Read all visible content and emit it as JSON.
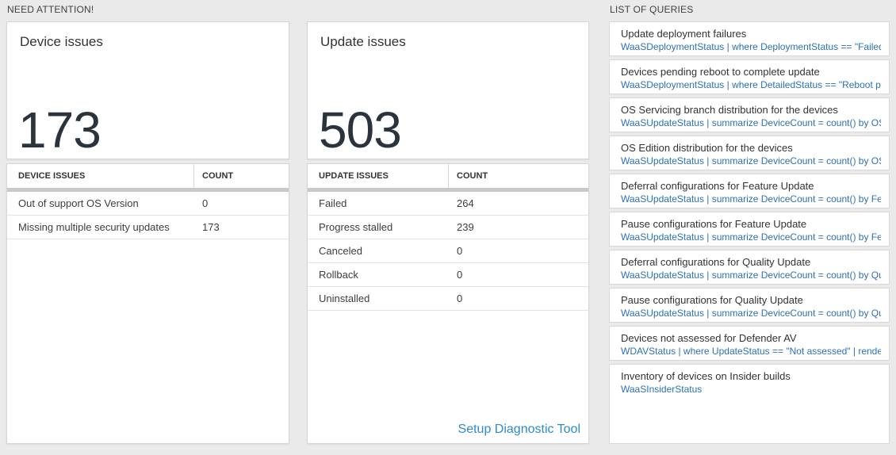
{
  "colors": {
    "page_background": "#eaeaea",
    "card_border": "#d6d6d6",
    "big_number": "#2b333d",
    "query_link_blue": "#2b71b8",
    "setup_link_blue": "#2e8ccd",
    "table_band_gray": "#c9c9c9"
  },
  "need_attention": {
    "label": "NEED ATTENTION!",
    "cards": [
      {
        "title": "Device issues",
        "big_number": "173",
        "table": {
          "columns": [
            "DEVICE ISSUES",
            "COUNT"
          ],
          "rows": [
            [
              "Out of support OS Version",
              "0"
            ],
            [
              "Missing multiple security updates",
              "173"
            ]
          ]
        }
      },
      {
        "title": "Update issues",
        "big_number": "503",
        "table": {
          "columns": [
            "UPDATE ISSUES",
            "COUNT"
          ],
          "rows": [
            [
              "Failed",
              "264"
            ],
            [
              "Progress stalled",
              "239"
            ],
            [
              "Canceled",
              "0"
            ],
            [
              "Rollback",
              "0"
            ],
            [
              "Uninstalled",
              "0"
            ]
          ]
        },
        "footer_link": "Setup Diagnostic Tool"
      }
    ]
  },
  "queries": {
    "label": "LIST OF QUERIES",
    "items": [
      {
        "title": "Update deployment failures",
        "query": "WaaSDeploymentStatus | where DeploymentStatus == \"Failed\" |..."
      },
      {
        "title": "Devices pending reboot to complete update",
        "query": "WaaSDeploymentStatus | where DetailedStatus == \"Reboot pend..."
      },
      {
        "title": "OS Servicing branch distribution for the devices",
        "query": "WaaSUpdateStatus | summarize DeviceCount = count() by OSSer..."
      },
      {
        "title": "OS Edition distribution for the devices",
        "query": "WaaSUpdateStatus | summarize DeviceCount = count() by OSEdit..."
      },
      {
        "title": "Deferral configurations for Feature Update",
        "query": "WaaSUpdateStatus | summarize DeviceCount = count() by Featur..."
      },
      {
        "title": "Pause configurations for Feature Update",
        "query": "WaaSUpdateStatus | summarize DeviceCount = count() by Featur..."
      },
      {
        "title": "Deferral configurations for Quality Update",
        "query": "WaaSUpdateStatus | summarize DeviceCount = count() by Qualit..."
      },
      {
        "title": "Pause configurations for Quality Update",
        "query": "WaaSUpdateStatus | summarize DeviceCount = count() by Qualit..."
      },
      {
        "title": "Devices not assessed for Defender AV",
        "query": "WDAVStatus | where UpdateStatus == \"Not assessed\" | render ta..."
      },
      {
        "title": "Inventory of devices on Insider builds",
        "query": "WaaSInsiderStatus"
      }
    ]
  }
}
